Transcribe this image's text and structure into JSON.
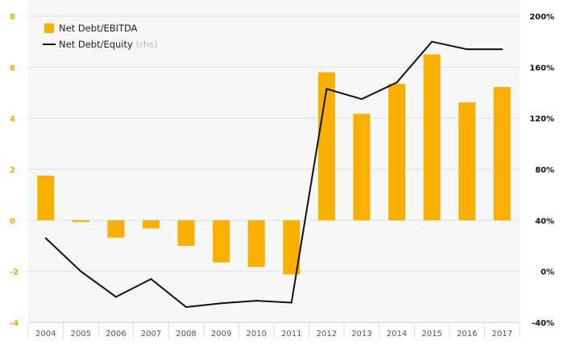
{
  "chart_data": {
    "type": "bar",
    "title": "",
    "categories": [
      "2004",
      "2005",
      "2006",
      "2007",
      "2008",
      "2009",
      "2010",
      "2011",
      "2012",
      "2013",
      "2014",
      "2015",
      "2016",
      "2017"
    ],
    "series": [
      {
        "name": "Net Debt/EBITDA",
        "type": "bar",
        "axis": "left",
        "color": "#f9b000",
        "values": [
          1.75,
          -0.07,
          -0.68,
          -0.32,
          -1.0,
          -1.65,
          -1.83,
          -2.12,
          5.8,
          4.17,
          5.35,
          6.5,
          4.62,
          5.22
        ]
      },
      {
        "name": "Net Debt/Equity",
        "name_note": "(rhs)",
        "type": "line",
        "axis": "right",
        "color": "#111111",
        "values": [
          26,
          0,
          -20,
          -6,
          -28,
          -25,
          -23,
          -24.5,
          143,
          135,
          148,
          180,
          174,
          174
        ]
      }
    ],
    "y_left": {
      "ylim": [
        -4,
        8
      ],
      "ticks": [
        8,
        6,
        4,
        2,
        0,
        -2,
        -4
      ],
      "tick_labels": [
        "8",
        "6",
        "4",
        "2",
        "0",
        "-2",
        "-4"
      ],
      "color": "#f0a800"
    },
    "y_right": {
      "ylim": [
        -40,
        200
      ],
      "ticks": [
        200,
        160,
        120,
        80,
        40,
        0,
        -40
      ],
      "tick_labels": [
        "200%",
        "160%",
        "120%",
        "80%",
        "40%",
        "0%",
        "-40%"
      ],
      "color": "#111111"
    },
    "grid": true,
    "legend": "top-left"
  }
}
